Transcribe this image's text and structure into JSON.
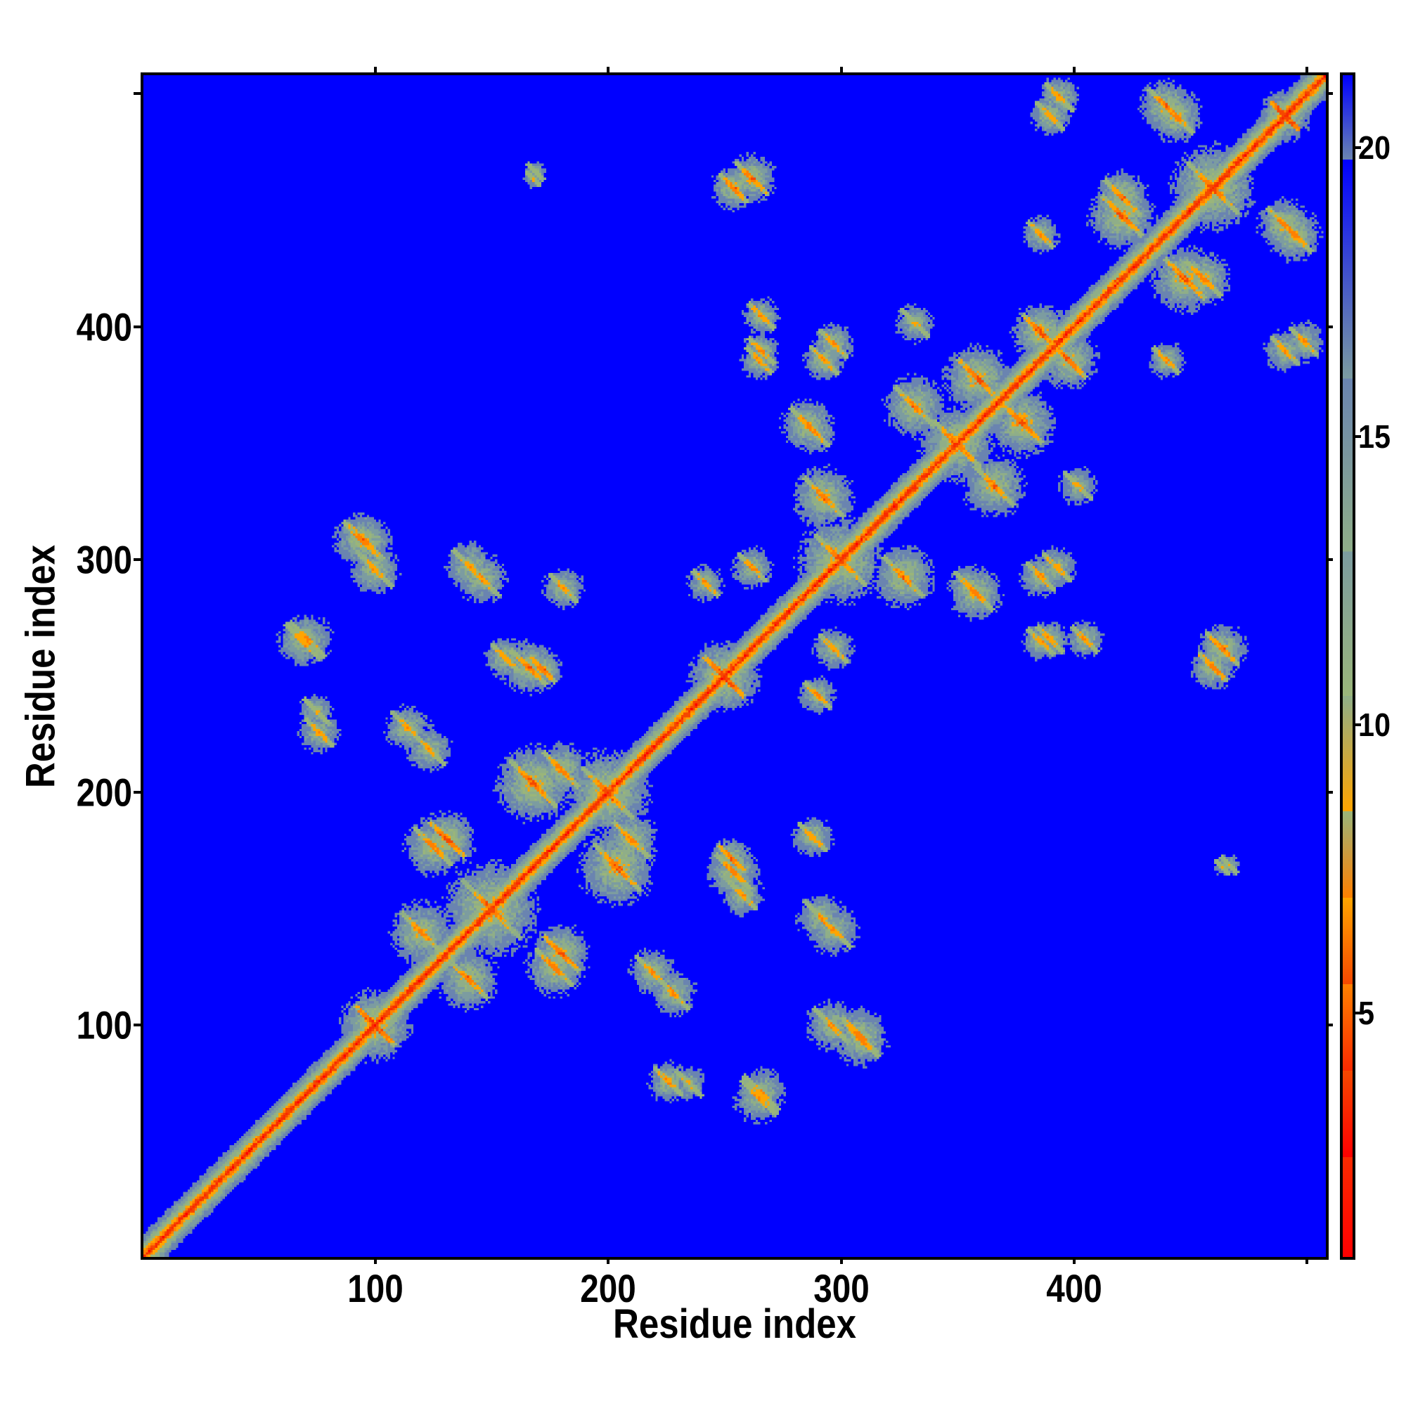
{
  "chart_data": {
    "type": "heatmap",
    "title": "",
    "xlabel": "Residue index",
    "ylabel": "Residue index",
    "xlim": [
      0.5,
      508
    ],
    "ylim": [
      0.5,
      508
    ],
    "x_ticks": [
      100,
      200,
      300,
      400
    ],
    "y_ticks": [
      100,
      200,
      300,
      400
    ],
    "extra_tick_positions": [
      500
    ],
    "colorbar": {
      "range": [
        0.77,
        21.26
      ],
      "ticks": [
        5,
        10,
        15,
        20
      ],
      "levels": [
        {
          "max": 2.5,
          "color": "#ff0000"
        },
        {
          "max": 4.0,
          "color": "#fa2a00"
        },
        {
          "max": 5.5,
          "color": "#f54800"
        },
        {
          "max": 7.0,
          "color": "#ff8000"
        },
        {
          "max": 8.5,
          "color": "#ffa500"
        },
        {
          "max": 10.5,
          "color": "#9ab57a"
        },
        {
          "max": 13.0,
          "color": "#8fae88"
        },
        {
          "max": 16.0,
          "color": "#7c9ca0"
        },
        {
          "max": 19.8,
          "color": "#6a84b0"
        },
        {
          "max": 99,
          "color": "#0000ff"
        }
      ]
    },
    "matrix_description_values": {
      "n_residues": 508,
      "diagonal_min_distance": 2,
      "diagonal_slope_per_residue": 1.7,
      "contacts": [
        [
          100,
          100,
          14,
          3
        ],
        [
          250,
          250,
          14,
          3
        ],
        [
          71,
          266,
          12,
          6
        ],
        [
          75,
          235,
          9,
          7
        ],
        [
          94,
          309,
          12,
          5
        ],
        [
          141,
          297,
          12,
          6
        ],
        [
          156,
          258,
          10,
          6
        ],
        [
          172,
          253,
          9,
          5
        ],
        [
          114,
          228,
          11,
          6
        ],
        [
          125,
          177,
          13,
          5
        ],
        [
          168,
          204,
          16,
          4
        ],
        [
          131,
          180,
          12,
          4
        ],
        [
          76,
          226,
          10,
          6
        ],
        [
          69,
          265,
          12,
          6
        ],
        [
          100,
          296,
          12,
          6
        ],
        [
          96,
          308,
          12,
          5
        ],
        [
          166,
          254,
          12,
          5
        ],
        [
          146,
          292,
          12,
          6
        ],
        [
          181,
          288,
          10,
          6
        ],
        [
          123,
          219,
          11,
          6
        ],
        [
          262,
          464,
          11,
          5
        ],
        [
          169,
          467,
          6,
          8
        ],
        [
          266,
          390,
          9,
          6
        ],
        [
          266,
          405,
          9,
          6
        ],
        [
          297,
          393,
          10,
          6
        ],
        [
          293,
          327,
          14,
          5
        ],
        [
          286,
          358,
          12,
          5
        ],
        [
          332,
          366,
          14,
          5
        ],
        [
          359,
          378,
          14,
          4
        ],
        [
          460,
          254,
          10,
          5
        ],
        [
          464,
          168,
          5,
          8
        ],
        [
          386,
          265,
          9,
          6
        ],
        [
          386,
          293,
          10,
          6
        ],
        [
          355,
          289,
          10,
          6
        ],
        [
          297,
          262,
          10,
          6
        ],
        [
          290,
          242,
          9,
          6
        ],
        [
          402,
          332,
          10,
          7
        ],
        [
          398,
          386,
          12,
          4
        ],
        [
          499,
          394,
          10,
          6
        ],
        [
          491,
          444,
          12,
          5
        ],
        [
          448,
          421,
          14,
          4
        ],
        [
          421,
          456,
          12,
          5
        ],
        [
          390,
          491,
          10,
          6
        ],
        [
          440,
          495,
          12,
          5
        ],
        [
          491,
          491,
          10,
          3
        ],
        [
          386,
          440,
          9,
          6
        ],
        [
          150,
          150,
          20,
          4
        ],
        [
          200,
          200,
          18,
          4
        ],
        [
          300,
          300,
          18,
          4
        ],
        [
          350,
          350,
          16,
          4
        ],
        [
          460,
          460,
          18,
          4
        ],
        [
          120,
          140,
          14,
          5
        ],
        [
          210,
          180,
          12,
          5
        ]
      ]
    }
  }
}
